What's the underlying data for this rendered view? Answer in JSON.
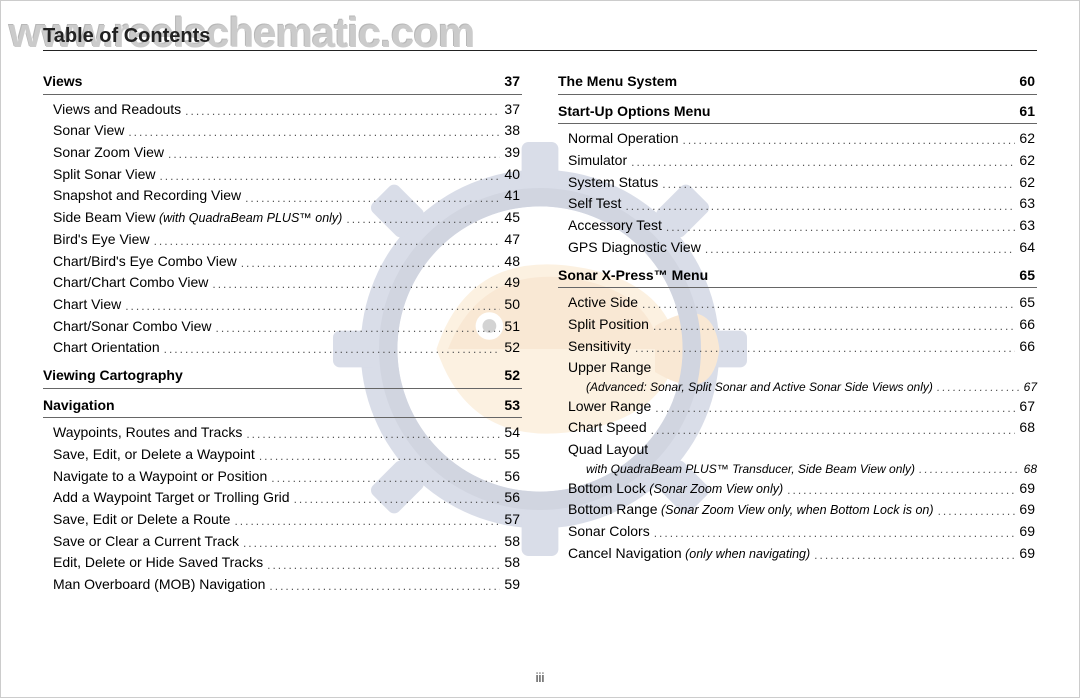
{
  "watermark_url": "www.reelschematic.com",
  "heading": "Table of Contents",
  "page_number": "iii",
  "left_column": [
    {
      "type": "section",
      "label": "Views",
      "page": "37"
    },
    {
      "type": "entry",
      "label": "Views and Readouts",
      "page": "37"
    },
    {
      "type": "entry",
      "label": "Sonar View",
      "page": "38"
    },
    {
      "type": "entry",
      "label": "Sonar Zoom View",
      "page": "39"
    },
    {
      "type": "entry",
      "label": "Split Sonar View",
      "page": "40"
    },
    {
      "type": "entry",
      "label": "Snapshot and Recording View",
      "page": "41"
    },
    {
      "type": "entry",
      "label": "Side Beam View",
      "note": "(with QuadraBeam PLUS™ only)",
      "page": "45"
    },
    {
      "type": "entry",
      "label": "Bird's Eye View",
      "page": "47"
    },
    {
      "type": "entry",
      "label": "Chart/Bird's Eye Combo View",
      "page": "48"
    },
    {
      "type": "entry",
      "label": "Chart/Chart Combo View",
      "page": "49"
    },
    {
      "type": "entry",
      "label": "Chart View",
      "page": "50"
    },
    {
      "type": "entry",
      "label": "Chart/Sonar Combo View",
      "page": "51"
    },
    {
      "type": "entry",
      "label": "Chart Orientation",
      "page": "52"
    },
    {
      "type": "section",
      "label": "Viewing Cartography",
      "page": "52"
    },
    {
      "type": "section",
      "label": "Navigation",
      "page": "53"
    },
    {
      "type": "entry",
      "label": "Waypoints, Routes and Tracks",
      "page": "54"
    },
    {
      "type": "entry",
      "label": "Save, Edit, or Delete a Waypoint",
      "page": "55"
    },
    {
      "type": "entry",
      "label": "Navigate to a Waypoint or Position",
      "page": "56"
    },
    {
      "type": "entry",
      "label": "Add a Waypoint Target or Trolling Grid",
      "page": "56"
    },
    {
      "type": "entry",
      "label": "Save, Edit or Delete a Route",
      "page": "57"
    },
    {
      "type": "entry",
      "label": "Save or Clear a Current Track",
      "page": "58"
    },
    {
      "type": "entry",
      "label": "Edit, Delete or Hide Saved Tracks",
      "page": "58"
    },
    {
      "type": "entry",
      "label": "Man Overboard (MOB) Navigation",
      "page": "59"
    }
  ],
  "right_column": [
    {
      "type": "section",
      "label": "The Menu System",
      "page": "60"
    },
    {
      "type": "section",
      "label": "Start-Up Options Menu",
      "page": "61"
    },
    {
      "type": "entry",
      "label": "Normal Operation",
      "page": "62"
    },
    {
      "type": "entry",
      "label": "Simulator",
      "page": "62"
    },
    {
      "type": "entry",
      "label": "System Status",
      "page": "62"
    },
    {
      "type": "entry",
      "label": "Self Test",
      "page": "63"
    },
    {
      "type": "entry",
      "label": "Accessory Test",
      "page": "63"
    },
    {
      "type": "entry",
      "label": "GPS Diagnostic View",
      "page": "64"
    },
    {
      "type": "section",
      "label": "Sonar X-Press™ Menu",
      "page": "65"
    },
    {
      "type": "entry",
      "label": "Active Side",
      "page": "65"
    },
    {
      "type": "entry",
      "label": "Split Position",
      "page": "66"
    },
    {
      "type": "entry",
      "label": "Sensitivity",
      "page": "66"
    },
    {
      "type": "entry",
      "label": "Upper Range",
      "subnote": "(Advanced: Sonar, Split Sonar and Active Sonar Side Views only)",
      "page": "67"
    },
    {
      "type": "entry",
      "label": "Lower Range",
      "page": "67"
    },
    {
      "type": "entry",
      "label": "Chart Speed",
      "page": "68"
    },
    {
      "type": "entry",
      "label": "Quad Layout",
      "subnote": "with QuadraBeam PLUS™ Transducer, Side Beam View only)",
      "page": "68"
    },
    {
      "type": "entry",
      "label": "Bottom Lock",
      "note": "(Sonar Zoom View only)",
      "page": "69"
    },
    {
      "type": "entry",
      "label": "Bottom Range",
      "note": "(Sonar Zoom View only, when Bottom Lock is on)",
      "page": "69"
    },
    {
      "type": "entry",
      "label": "Sonar Colors",
      "page": "69"
    },
    {
      "type": "entry",
      "label": "Cancel Navigation",
      "note": "(only when navigating)",
      "page": "69"
    }
  ],
  "colors": {
    "gear_blue": "#6a7aa8",
    "gear_dark": "#4a5a88",
    "fish_orange": "#e8a858",
    "fish_light": "#f4c989"
  }
}
